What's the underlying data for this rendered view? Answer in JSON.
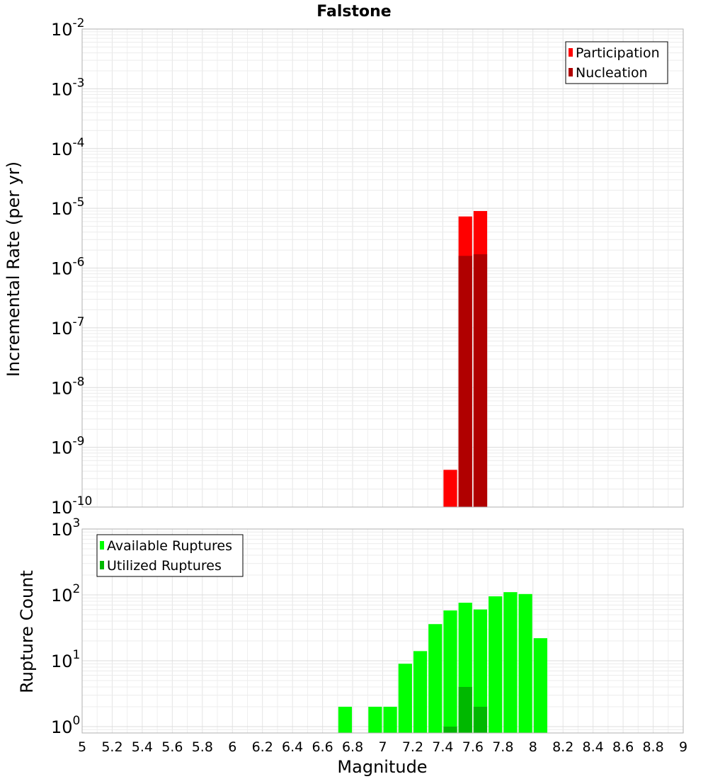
{
  "chart_data": [
    {
      "type": "bar",
      "title": "Falstone",
      "ylabel": "Incremental Rate (per yr)",
      "y_scale": "log",
      "ylim": [
        1e-10,
        0.01
      ],
      "xlim": [
        5,
        9
      ],
      "bar_width": 0.1,
      "grid": true,
      "legend_position": "top-right",
      "y_ticks": [
        {
          "base": "10",
          "exp": "-10"
        },
        {
          "base": "10",
          "exp": "-9"
        },
        {
          "base": "10",
          "exp": "-8"
        },
        {
          "base": "10",
          "exp": "-7"
        },
        {
          "base": "10",
          "exp": "-6"
        },
        {
          "base": "10",
          "exp": "-5"
        },
        {
          "base": "10",
          "exp": "-4"
        },
        {
          "base": "10",
          "exp": "-3"
        },
        {
          "base": "10",
          "exp": "-2"
        }
      ],
      "series": [
        {
          "name": "Participation",
          "color": "#ff0000",
          "x": [
            7.45,
            7.55,
            7.65
          ],
          "values": [
            4.2e-10,
            7.3e-06,
            9e-06
          ]
        },
        {
          "name": "Nucleation",
          "color": "#b00000",
          "x": [
            7.55,
            7.65
          ],
          "values": [
            1.6e-06,
            1.7e-06
          ]
        }
      ]
    },
    {
      "type": "bar",
      "ylabel": "Rupture Count",
      "xlabel": "Magnitude",
      "y_scale": "log",
      "ylim": [
        0.8,
        1000
      ],
      "xlim": [
        5,
        9
      ],
      "bar_width": 0.1,
      "grid": true,
      "legend_position": "top-left",
      "y_ticks": [
        {
          "base": "10",
          "exp": "0"
        },
        {
          "base": "10",
          "exp": "1"
        },
        {
          "base": "10",
          "exp": "2"
        },
        {
          "base": "10",
          "exp": "3"
        }
      ],
      "x_ticks": [
        "5",
        "5.2",
        "5.4",
        "5.6",
        "5.8",
        "6",
        "6.2",
        "6.4",
        "6.6",
        "6.8",
        "7",
        "7.2",
        "7.4",
        "7.6",
        "7.8",
        "8",
        "8.2",
        "8.4",
        "8.6",
        "8.8",
        "9"
      ],
      "series": [
        {
          "name": "Available Ruptures",
          "color": "#00ff00",
          "x": [
            6.75,
            6.95,
            7.05,
            7.15,
            7.25,
            7.35,
            7.45,
            7.55,
            7.65,
            7.75,
            7.85,
            7.95,
            8.05
          ],
          "values": [
            2,
            2,
            2,
            9,
            14,
            36,
            58,
            76,
            60,
            95,
            110,
            103,
            22
          ]
        },
        {
          "name": "Utilized Ruptures",
          "color": "#00b800",
          "x": [
            7.45,
            7.55,
            7.65
          ],
          "values": [
            1,
            4,
            2
          ]
        }
      ]
    }
  ]
}
